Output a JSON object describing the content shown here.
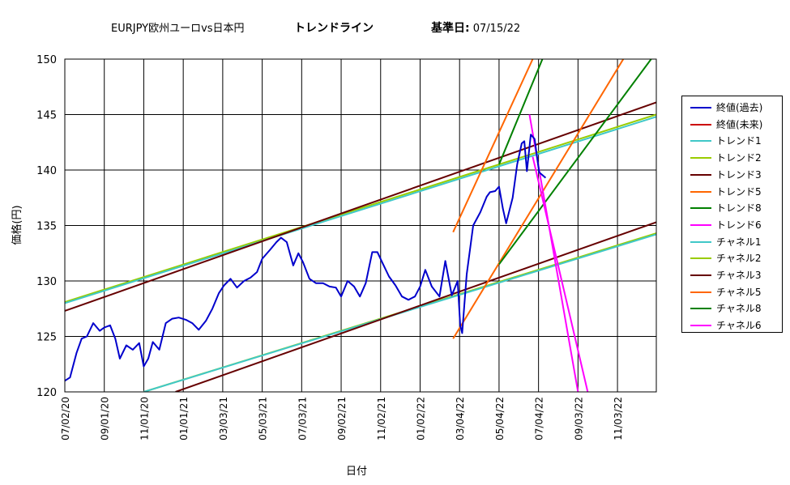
{
  "title": {
    "main": "EURJPY欧州ユーロvs日本円",
    "trend": "トレンドライン",
    "date_label": "基準日:",
    "date_value": "07/15/22"
  },
  "chart_data": {
    "type": "line",
    "xlabel": "日付",
    "ylabel": "価格(円)",
    "ylim": [
      120,
      150
    ],
    "yticks": [
      120,
      125,
      130,
      135,
      140,
      145,
      150
    ],
    "xticks": [
      "07/02/20",
      "09/01/20",
      "11/01/20",
      "01/01/21",
      "03/03/21",
      "05/03/21",
      "07/03/21",
      "09/02/21",
      "11/02/21",
      "01/02/22",
      "03/04/22",
      "05/04/22",
      "07/04/22",
      "09/03/22",
      "11/03/22"
    ],
    "xtick_dates": [
      "2020-07-02",
      "2020-09-01",
      "2020-11-01",
      "2021-01-01",
      "2021-03-03",
      "2021-05-03",
      "2021-07-03",
      "2021-09-02",
      "2021-11-02",
      "2022-01-02",
      "2022-03-04",
      "2022-05-04",
      "2022-07-04",
      "2022-09-03",
      "2022-11-03"
    ],
    "x_range": [
      "2020-07-02",
      "2023-01-02"
    ],
    "grid": true,
    "legend_position": "right",
    "series": [
      {
        "name": "終値(過去)",
        "color": "#0000cc",
        "type": "price",
        "points": [
          [
            "2020-07-02",
            121.0
          ],
          [
            "2020-07-10",
            121.3
          ],
          [
            "2020-07-20",
            123.5
          ],
          [
            "2020-07-28",
            124.8
          ],
          [
            "2020-08-05",
            125.0
          ],
          [
            "2020-08-15",
            126.2
          ],
          [
            "2020-08-25",
            125.5
          ],
          [
            "2020-09-01",
            125.8
          ],
          [
            "2020-09-10",
            126.0
          ],
          [
            "2020-09-18",
            124.8
          ],
          [
            "2020-09-25",
            123.0
          ],
          [
            "2020-10-05",
            124.2
          ],
          [
            "2020-10-15",
            123.8
          ],
          [
            "2020-10-25",
            124.4
          ],
          [
            "2020-11-01",
            122.3
          ],
          [
            "2020-11-08",
            123.0
          ],
          [
            "2020-11-15",
            124.5
          ],
          [
            "2020-11-25",
            123.8
          ],
          [
            "2020-12-05",
            126.2
          ],
          [
            "2020-12-15",
            126.6
          ],
          [
            "2020-12-25",
            126.7
          ],
          [
            "2021-01-05",
            126.5
          ],
          [
            "2021-01-15",
            126.2
          ],
          [
            "2021-01-25",
            125.6
          ],
          [
            "2021-02-05",
            126.4
          ],
          [
            "2021-02-15",
            127.5
          ],
          [
            "2021-02-25",
            128.9
          ],
          [
            "2021-03-05",
            129.6
          ],
          [
            "2021-03-15",
            130.2
          ],
          [
            "2021-03-25",
            129.4
          ],
          [
            "2021-04-05",
            130.0
          ],
          [
            "2021-04-15",
            130.3
          ],
          [
            "2021-04-25",
            130.8
          ],
          [
            "2021-05-03",
            132.0
          ],
          [
            "2021-05-15",
            132.8
          ],
          [
            "2021-05-25",
            133.5
          ],
          [
            "2021-06-01",
            133.9
          ],
          [
            "2021-06-10",
            133.5
          ],
          [
            "2021-06-20",
            131.4
          ],
          [
            "2021-06-28",
            132.5
          ],
          [
            "2021-07-05",
            131.7
          ],
          [
            "2021-07-15",
            130.2
          ],
          [
            "2021-07-25",
            129.8
          ],
          [
            "2021-08-05",
            129.8
          ],
          [
            "2021-08-15",
            129.5
          ],
          [
            "2021-08-25",
            129.4
          ],
          [
            "2021-09-02",
            128.6
          ],
          [
            "2021-09-12",
            130.0
          ],
          [
            "2021-09-22",
            129.5
          ],
          [
            "2021-10-01",
            128.6
          ],
          [
            "2021-10-10",
            129.8
          ],
          [
            "2021-10-20",
            132.6
          ],
          [
            "2021-10-28",
            132.6
          ],
          [
            "2021-11-05",
            131.6
          ],
          [
            "2021-11-15",
            130.4
          ],
          [
            "2021-11-25",
            129.6
          ],
          [
            "2021-12-05",
            128.6
          ],
          [
            "2021-12-15",
            128.3
          ],
          [
            "2021-12-25",
            128.6
          ],
          [
            "2022-01-02",
            129.5
          ],
          [
            "2022-01-10",
            131.0
          ],
          [
            "2022-01-20",
            129.5
          ],
          [
            "2022-02-01",
            128.6
          ],
          [
            "2022-02-10",
            131.8
          ],
          [
            "2022-02-20",
            128.7
          ],
          [
            "2022-03-01",
            130.0
          ],
          [
            "2022-03-05",
            126.0
          ],
          [
            "2022-03-08",
            125.3
          ],
          [
            "2022-03-15",
            130.6
          ],
          [
            "2022-03-25",
            135.0
          ],
          [
            "2022-04-05",
            136.2
          ],
          [
            "2022-04-15",
            137.6
          ],
          [
            "2022-04-20",
            138.0
          ],
          [
            "2022-04-28",
            138.1
          ],
          [
            "2022-05-04",
            138.5
          ],
          [
            "2022-05-10",
            136.5
          ],
          [
            "2022-05-15",
            135.2
          ],
          [
            "2022-05-25",
            137.5
          ],
          [
            "2022-06-01",
            140.5
          ],
          [
            "2022-06-08",
            142.4
          ],
          [
            "2022-06-12",
            142.6
          ],
          [
            "2022-06-16",
            139.9
          ],
          [
            "2022-06-22",
            143.2
          ],
          [
            "2022-06-28",
            142.8
          ],
          [
            "2022-07-05",
            139.8
          ],
          [
            "2022-07-15",
            139.3
          ]
        ]
      },
      {
        "name": "終値(未来)",
        "color": "#cc0000",
        "type": "price",
        "points": []
      },
      {
        "name": "トレンド1",
        "color": "#40c8c8",
        "type": "line",
        "from": [
          "2020-07-02",
          128.0
        ],
        "to": [
          "2023-01-02",
          144.8
        ]
      },
      {
        "name": "トレンド2",
        "color": "#99cc00",
        "type": "line",
        "from": [
          "2020-07-02",
          128.1
        ],
        "to": [
          "2023-01-02",
          145.0
        ]
      },
      {
        "name": "トレンド3",
        "color": "#660000",
        "type": "line",
        "from": [
          "2020-07-02",
          127.3
        ],
        "to": [
          "2023-01-02",
          146.1
        ]
      },
      {
        "name": "トレンド5",
        "color": "#ff6600",
        "type": "line",
        "from": [
          "2022-02-22",
          134.4
        ],
        "to": [
          "2022-06-25",
          150.0
        ]
      },
      {
        "name": "トレンド8",
        "color": "#008000",
        "type": "line",
        "from": [
          "2022-05-04",
          140.5
        ],
        "to": [
          "2022-07-10",
          150.0
        ]
      },
      {
        "name": "トレンド6",
        "color": "#ff00ff",
        "type": "line",
        "from": [
          "2022-06-20",
          145.0
        ],
        "to": [
          "2022-09-03",
          120.0
        ]
      },
      {
        "name": "チャネル1",
        "color": "#40c8c8",
        "type": "line",
        "from": [
          "2020-11-01",
          120.0
        ],
        "to": [
          "2023-01-02",
          134.2
        ]
      },
      {
        "name": "チャネル2",
        "color": "#99cc00",
        "type": "line",
        "from": [
          "2020-11-01",
          120.0
        ],
        "to": [
          "2023-01-02",
          134.3
        ]
      },
      {
        "name": "チャネル3",
        "color": "#660000",
        "type": "line",
        "from": [
          "2020-12-20",
          120.0
        ],
        "to": [
          "2023-01-02",
          135.3
        ]
      },
      {
        "name": "チャネル5",
        "color": "#ff6600",
        "type": "line",
        "from": [
          "2022-02-22",
          124.8
        ],
        "to": [
          "2022-11-12",
          150.0
        ]
      },
      {
        "name": "チャネル8",
        "color": "#008000",
        "type": "line",
        "from": [
          "2022-05-04",
          131.5
        ],
        "to": [
          "2022-12-25",
          150.0
        ]
      },
      {
        "name": "チャネル6",
        "color": "#ff00ff",
        "type": "line",
        "from": [
          "2022-06-25",
          141.2
        ],
        "to": [
          "2022-09-18",
          120.0
        ]
      }
    ]
  }
}
